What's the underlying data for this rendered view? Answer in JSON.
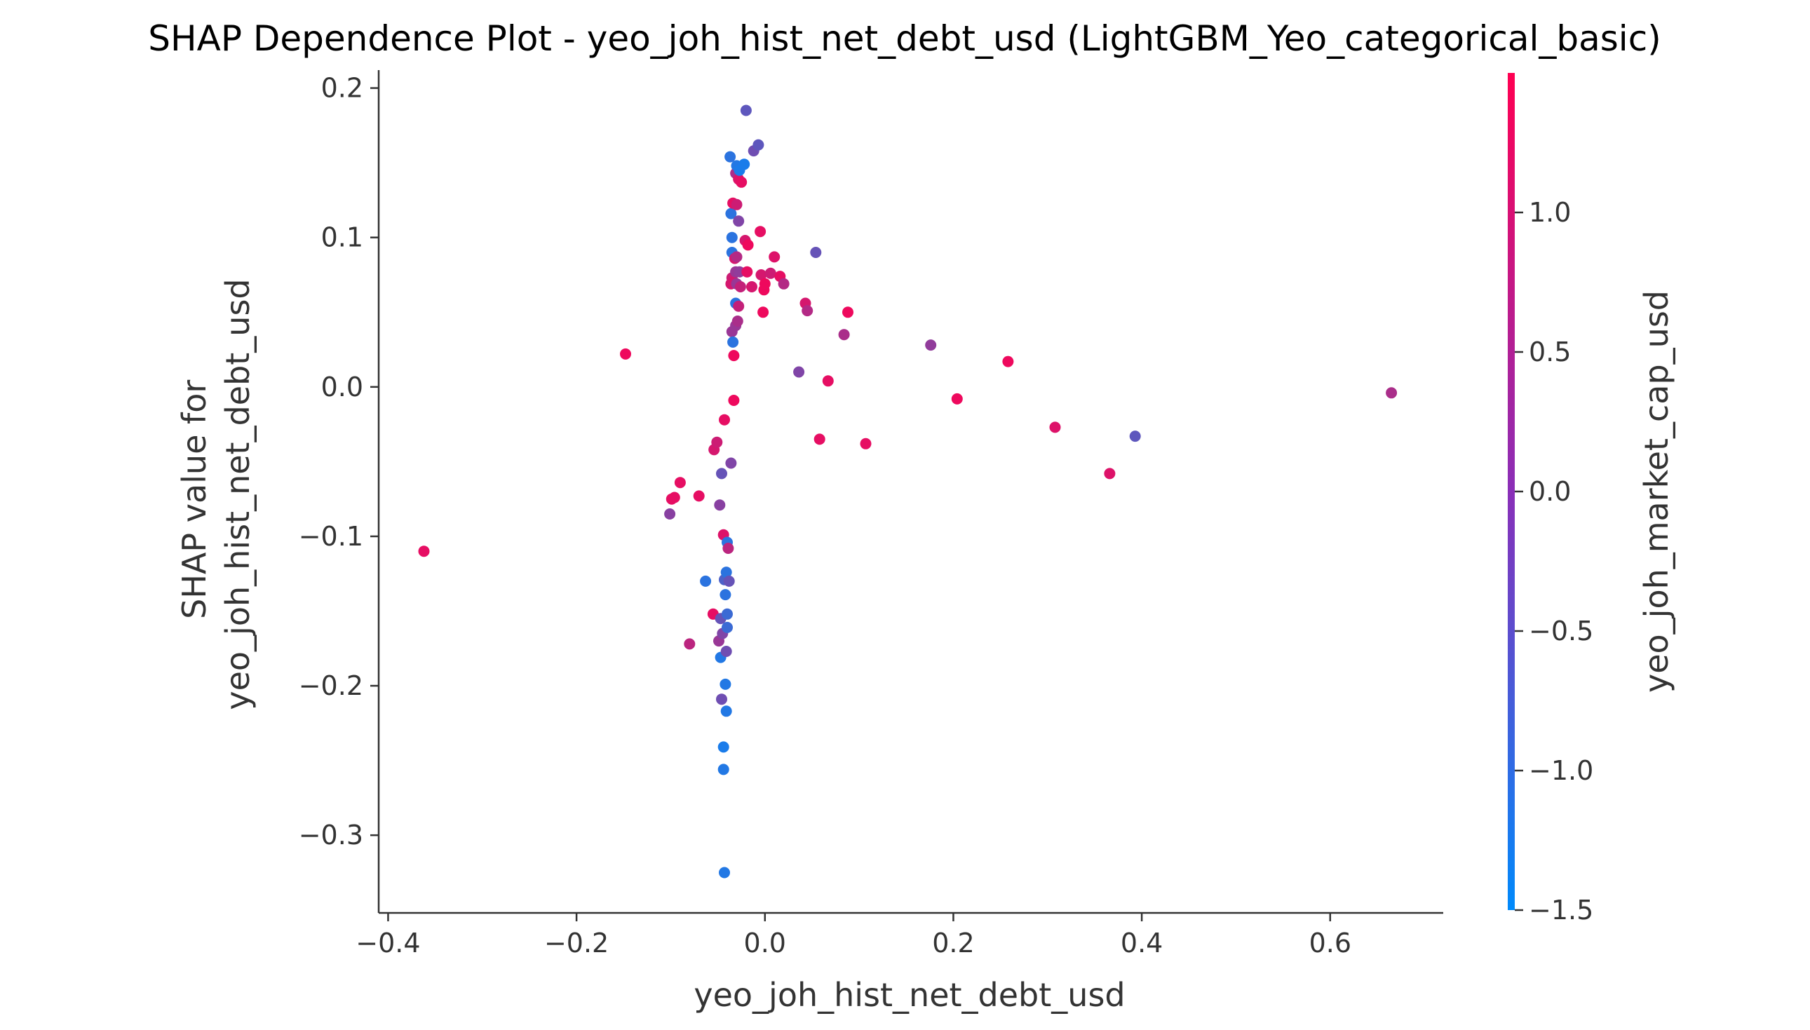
{
  "chart_data": {
    "type": "scatter",
    "title": "SHAP Dependence Plot - yeo_joh_hist_net_debt_usd (LightGBM_Yeo_categorical_basic)",
    "xlabel": "yeo_joh_hist_net_debt_usd",
    "ylabel_line1": "SHAP value for",
    "ylabel_line2": "yeo_joh_hist_net_debt_usd",
    "xlim": [
      -0.41,
      0.72
    ],
    "ylim": [
      -0.352,
      0.212
    ],
    "x_ticks": [
      -0.4,
      -0.2,
      0.0,
      0.2,
      0.4,
      0.6
    ],
    "y_ticks": [
      -0.3,
      -0.2,
      -0.1,
      0.0,
      0.1,
      0.2
    ],
    "grid": false,
    "colorbar": {
      "label": "yeo_joh_market_cap_usd",
      "range": [
        -1.5,
        1.5
      ],
      "ticks": [
        -1.5,
        -1.0,
        -0.5,
        0.0,
        0.5,
        1.0
      ],
      "color_low": "#008afb",
      "color_high": "#ff0052"
    },
    "series": [
      {
        "points": [
          {
            "x": -0.362,
            "y": -0.11,
            "c": 1.2
          },
          {
            "x": -0.148,
            "y": 0.022,
            "c": 1.3
          },
          {
            "x": -0.101,
            "y": -0.085,
            "c": 0.1
          },
          {
            "x": -0.099,
            "y": -0.075,
            "c": 1.2
          },
          {
            "x": -0.096,
            "y": -0.074,
            "c": 1.2
          },
          {
            "x": -0.09,
            "y": -0.064,
            "c": 1.2
          },
          {
            "x": -0.08,
            "y": -0.172,
            "c": 0.7
          },
          {
            "x": -0.07,
            "y": -0.073,
            "c": 1.2
          },
          {
            "x": -0.063,
            "y": -0.13,
            "c": -1.0
          },
          {
            "x": -0.055,
            "y": -0.152,
            "c": 1.2
          },
          {
            "x": -0.054,
            "y": -0.042,
            "c": 1.0
          },
          {
            "x": -0.051,
            "y": -0.037,
            "c": 0.9
          },
          {
            "x": -0.049,
            "y": -0.17,
            "c": 0.3
          },
          {
            "x": -0.048,
            "y": -0.079,
            "c": 0.1
          },
          {
            "x": -0.047,
            "y": -0.155,
            "c": -0.3
          },
          {
            "x": -0.047,
            "y": -0.181,
            "c": -1.1
          },
          {
            "x": -0.046,
            "y": -0.209,
            "c": -0.2
          },
          {
            "x": -0.046,
            "y": -0.058,
            "c": -0.3
          },
          {
            "x": -0.045,
            "y": -0.165,
            "c": 0.0
          },
          {
            "x": -0.044,
            "y": -0.241,
            "c": -1.2
          },
          {
            "x": -0.044,
            "y": -0.256,
            "c": -1.1
          },
          {
            "x": -0.044,
            "y": -0.099,
            "c": 1.1
          },
          {
            "x": -0.043,
            "y": -0.325,
            "c": -1.1
          },
          {
            "x": -0.043,
            "y": -0.129,
            "c": -0.6
          },
          {
            "x": -0.043,
            "y": -0.022,
            "c": 1.2
          },
          {
            "x": -0.042,
            "y": -0.199,
            "c": -1.1
          },
          {
            "x": -0.042,
            "y": -0.139,
            "c": -1.0
          },
          {
            "x": -0.041,
            "y": -0.177,
            "c": -0.2
          },
          {
            "x": -0.041,
            "y": -0.217,
            "c": -1.1
          },
          {
            "x": -0.041,
            "y": -0.124,
            "c": -1.0
          },
          {
            "x": -0.04,
            "y": -0.104,
            "c": -1.0
          },
          {
            "x": -0.04,
            "y": -0.152,
            "c": -0.8
          },
          {
            "x": -0.04,
            "y": -0.161,
            "c": -0.8
          },
          {
            "x": -0.039,
            "y": -0.108,
            "c": 0.7
          },
          {
            "x": -0.038,
            "y": -0.13,
            "c": -0.3
          },
          {
            "x": -0.037,
            "y": 0.154,
            "c": -1.0
          },
          {
            "x": -0.036,
            "y": 0.116,
            "c": -1.0
          },
          {
            "x": -0.036,
            "y": 0.069,
            "c": 1.0
          },
          {
            "x": -0.036,
            "y": -0.051,
            "c": 0.0
          },
          {
            "x": -0.035,
            "y": 0.1,
            "c": -1.0
          },
          {
            "x": -0.035,
            "y": 0.09,
            "c": -1.0
          },
          {
            "x": -0.035,
            "y": 0.073,
            "c": 0.9
          },
          {
            "x": -0.035,
            "y": 0.037,
            "c": 0.3
          },
          {
            "x": -0.034,
            "y": 0.123,
            "c": 1.2
          },
          {
            "x": -0.034,
            "y": 0.07,
            "c": 1.0
          },
          {
            "x": -0.034,
            "y": 0.03,
            "c": -1.0
          },
          {
            "x": -0.033,
            "y": 0.021,
            "c": 1.3
          },
          {
            "x": -0.033,
            "y": -0.009,
            "c": 1.3
          },
          {
            "x": -0.032,
            "y": 0.086,
            "c": 1.0
          },
          {
            "x": -0.031,
            "y": 0.143,
            "c": 0.5
          },
          {
            "x": -0.031,
            "y": 0.077,
            "c": 0.3
          },
          {
            "x": -0.031,
            "y": 0.056,
            "c": -1.0
          },
          {
            "x": -0.031,
            "y": 0.041,
            "c": 0.3
          },
          {
            "x": -0.03,
            "y": 0.148,
            "c": -1.1
          },
          {
            "x": -0.03,
            "y": 0.122,
            "c": 0.9
          },
          {
            "x": -0.03,
            "y": 0.087,
            "c": 0.6
          },
          {
            "x": -0.03,
            "y": 0.069,
            "c": 0.3
          },
          {
            "x": -0.029,
            "y": 0.044,
            "c": 0.5
          },
          {
            "x": -0.028,
            "y": 0.139,
            "c": 1.1
          },
          {
            "x": -0.028,
            "y": 0.111,
            "c": 0.0
          },
          {
            "x": -0.028,
            "y": 0.054,
            "c": 0.8
          },
          {
            "x": -0.027,
            "y": 0.145,
            "c": -1.2
          },
          {
            "x": -0.027,
            "y": 0.077,
            "c": 0.2
          },
          {
            "x": -0.026,
            "y": 0.067,
            "c": 0.8
          },
          {
            "x": -0.025,
            "y": 0.137,
            "c": 1.2
          },
          {
            "x": -0.022,
            "y": 0.149,
            "c": -1.2
          },
          {
            "x": -0.021,
            "y": 0.098,
            "c": 1.0
          },
          {
            "x": -0.02,
            "y": 0.185,
            "c": -0.4
          },
          {
            "x": -0.019,
            "y": 0.077,
            "c": 1.2
          },
          {
            "x": -0.018,
            "y": 0.095,
            "c": 1.3
          },
          {
            "x": -0.014,
            "y": 0.067,
            "c": 1.0
          },
          {
            "x": -0.012,
            "y": 0.158,
            "c": -0.2
          },
          {
            "x": -0.007,
            "y": 0.162,
            "c": -0.4
          },
          {
            "x": -0.005,
            "y": 0.104,
            "c": 1.2
          },
          {
            "x": -0.004,
            "y": 0.075,
            "c": 1.0
          },
          {
            "x": -0.002,
            "y": 0.05,
            "c": 1.3
          },
          {
            "x": -0.001,
            "y": 0.065,
            "c": 1.3
          },
          {
            "x": 0.0,
            "y": 0.069,
            "c": 1.3
          },
          {
            "x": 0.006,
            "y": 0.076,
            "c": 0.9
          },
          {
            "x": 0.01,
            "y": 0.087,
            "c": 1.1
          },
          {
            "x": 0.016,
            "y": 0.074,
            "c": 1.2
          },
          {
            "x": 0.02,
            "y": 0.069,
            "c": 0.6
          },
          {
            "x": 0.036,
            "y": 0.01,
            "c": 0.0
          },
          {
            "x": 0.043,
            "y": 0.056,
            "c": 1.0
          },
          {
            "x": 0.045,
            "y": 0.051,
            "c": 0.6
          },
          {
            "x": 0.054,
            "y": 0.09,
            "c": -0.3
          },
          {
            "x": 0.058,
            "y": -0.035,
            "c": 1.2
          },
          {
            "x": 0.067,
            "y": 0.004,
            "c": 1.2
          },
          {
            "x": 0.084,
            "y": 0.035,
            "c": 0.5
          },
          {
            "x": 0.088,
            "y": 0.05,
            "c": 1.3
          },
          {
            "x": 0.107,
            "y": -0.038,
            "c": 1.2
          },
          {
            "x": 0.176,
            "y": 0.028,
            "c": 0.2
          },
          {
            "x": 0.204,
            "y": -0.008,
            "c": 1.3
          },
          {
            "x": 0.258,
            "y": 0.017,
            "c": 1.3
          },
          {
            "x": 0.308,
            "y": -0.027,
            "c": 1.1
          },
          {
            "x": 0.366,
            "y": -0.058,
            "c": 1.1
          },
          {
            "x": 0.393,
            "y": -0.033,
            "c": -0.4
          },
          {
            "x": 0.665,
            "y": -0.004,
            "c": 0.5
          }
        ]
      }
    ]
  }
}
